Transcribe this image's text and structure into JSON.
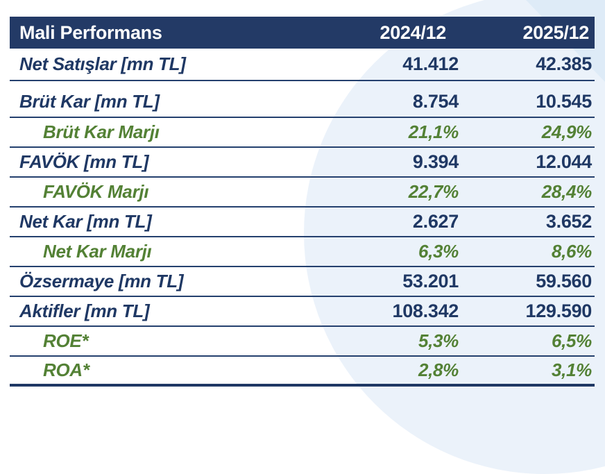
{
  "colors": {
    "navy": "#1F3864",
    "header-bg": "#233A66",
    "green": "#538135",
    "line": "#24406E",
    "bg-circle": "#EBF2FA",
    "bg-corner": "#DEEBF7"
  },
  "table": {
    "header": {
      "title": "Mali Performans",
      "col1": "2024/12",
      "col2": "2025/12"
    },
    "rows": [
      {
        "kind": "metric",
        "label": "Net Satışlar [mn TL]",
        "v1": "41.412",
        "v2": "42.385"
      },
      {
        "kind": "metric",
        "label": "Brüt Kar [mn TL]",
        "v1": "8.754",
        "v2": "10.545"
      },
      {
        "kind": "margin",
        "label": "Brüt Kar Marjı",
        "v1": "21,1%",
        "v2": "24,9%"
      },
      {
        "kind": "metric",
        "label": "FAVÖK [mn TL]",
        "v1": "9.394",
        "v2": "12.044"
      },
      {
        "kind": "margin",
        "label": "FAVÖK Marjı",
        "v1": "22,7%",
        "v2": "28,4%"
      },
      {
        "kind": "metric",
        "label": "Net Kar [mn TL]",
        "v1": "2.627",
        "v2": "3.652"
      },
      {
        "kind": "margin",
        "label": "Net Kar Marjı",
        "v1": "6,3%",
        "v2": "8,6%"
      },
      {
        "kind": "metric",
        "label": "Özsermaye [mn TL]",
        "v1": "53.201",
        "v2": "59.560"
      },
      {
        "kind": "metric",
        "label": "Aktifler [mn TL]",
        "v1": "108.342",
        "v2": "129.590"
      },
      {
        "kind": "margin",
        "label": "ROE*",
        "v1": "5,3%",
        "v2": "6,5%"
      },
      {
        "kind": "margin",
        "label": "ROA*",
        "v1": "2,8%",
        "v2": "3,1%"
      }
    ]
  }
}
